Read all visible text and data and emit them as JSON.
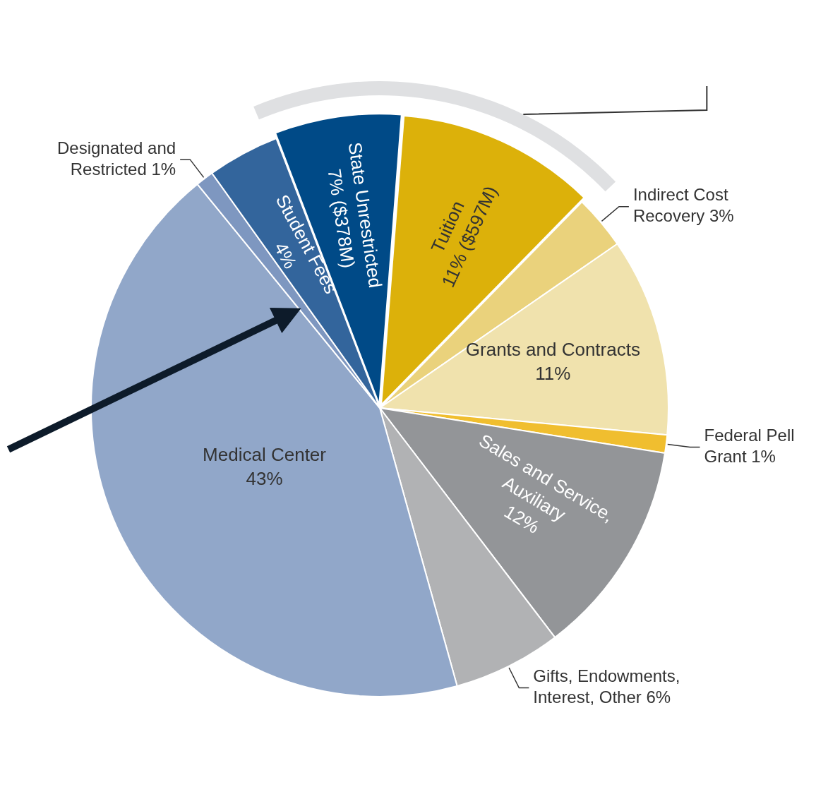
{
  "chart_data": {
    "type": "pie",
    "categories": [
      "State Unrestricted",
      "Tuition",
      "Indirect Cost Recovery",
      "Grants and Contracts",
      "Federal Pell Grant",
      "Sales and Service, Auxiliary",
      "Gifts, Endowments, Interest, Other",
      "Medical Center",
      "Designated and Restricted",
      "Student Fees"
    ],
    "values": [
      7,
      11,
      3,
      11,
      1,
      12,
      6,
      43,
      1,
      4
    ],
    "value_labels": [
      "7% ($378M)",
      "11% ($597M)",
      "3%",
      "11%",
      "1%",
      "12%",
      "6%",
      "43%",
      "1%",
      "4%"
    ],
    "colors": [
      "#004a87",
      "#dcb10a",
      "#ead27c",
      "#f0e2ad",
      "#f0be2f",
      "#939598",
      "#b1b2b4",
      "#91a7c9",
      "#7e97c0",
      "#33659c"
    ],
    "legend": false
  }
}
